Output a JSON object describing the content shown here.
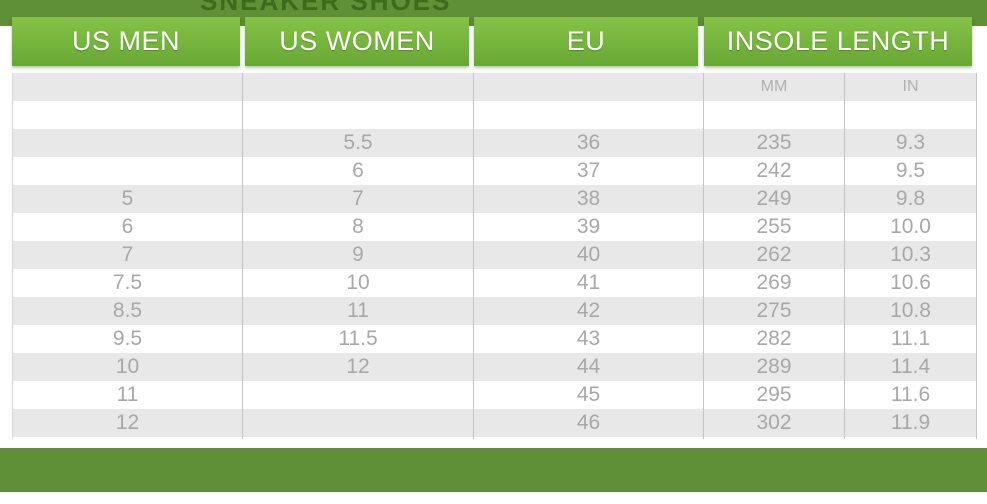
{
  "banner": {
    "title": "SNEAKER SHOES"
  },
  "headers": {
    "us_men": "US MEN",
    "us_women": "US WOMEN",
    "eu": "EU",
    "insole": "INSOLE LENGTH"
  },
  "subheaders": {
    "mm": "MM",
    "in": "IN"
  },
  "rows": [
    {
      "men": "",
      "women": "",
      "eu": "",
      "mm": "",
      "in": ""
    },
    {
      "men": "",
      "women": "5.5",
      "eu": "36",
      "mm": "235",
      "in": "9.3"
    },
    {
      "men": "",
      "women": "6",
      "eu": "37",
      "mm": "242",
      "in": "9.5"
    },
    {
      "men": "5",
      "women": "7",
      "eu": "38",
      "mm": "249",
      "in": "9.8"
    },
    {
      "men": "6",
      "women": "8",
      "eu": "39",
      "mm": "255",
      "in": "10.0"
    },
    {
      "men": "7",
      "women": "9",
      "eu": "40",
      "mm": "262",
      "in": "10.3"
    },
    {
      "men": "7.5",
      "women": "10",
      "eu": "41",
      "mm": "269",
      "in": "10.6"
    },
    {
      "men": "8.5",
      "women": "11",
      "eu": "42",
      "mm": "275",
      "in": "10.8"
    },
    {
      "men": "9.5",
      "women": "11.5",
      "eu": "43",
      "mm": "282",
      "in": "11.1"
    },
    {
      "men": "10",
      "women": "12",
      "eu": "44",
      "mm": "289",
      "in": "11.4"
    },
    {
      "men": "11",
      "women": "",
      "eu": "45",
      "mm": "295",
      "in": "11.6"
    },
    {
      "men": "12",
      "women": "",
      "eu": "46",
      "mm": "302",
      "in": "11.9"
    }
  ],
  "colors": {
    "band": "#5f8f36",
    "header_green": "#76b53e",
    "stripe": "#e8e8e8",
    "text": "#a8a8a8"
  }
}
